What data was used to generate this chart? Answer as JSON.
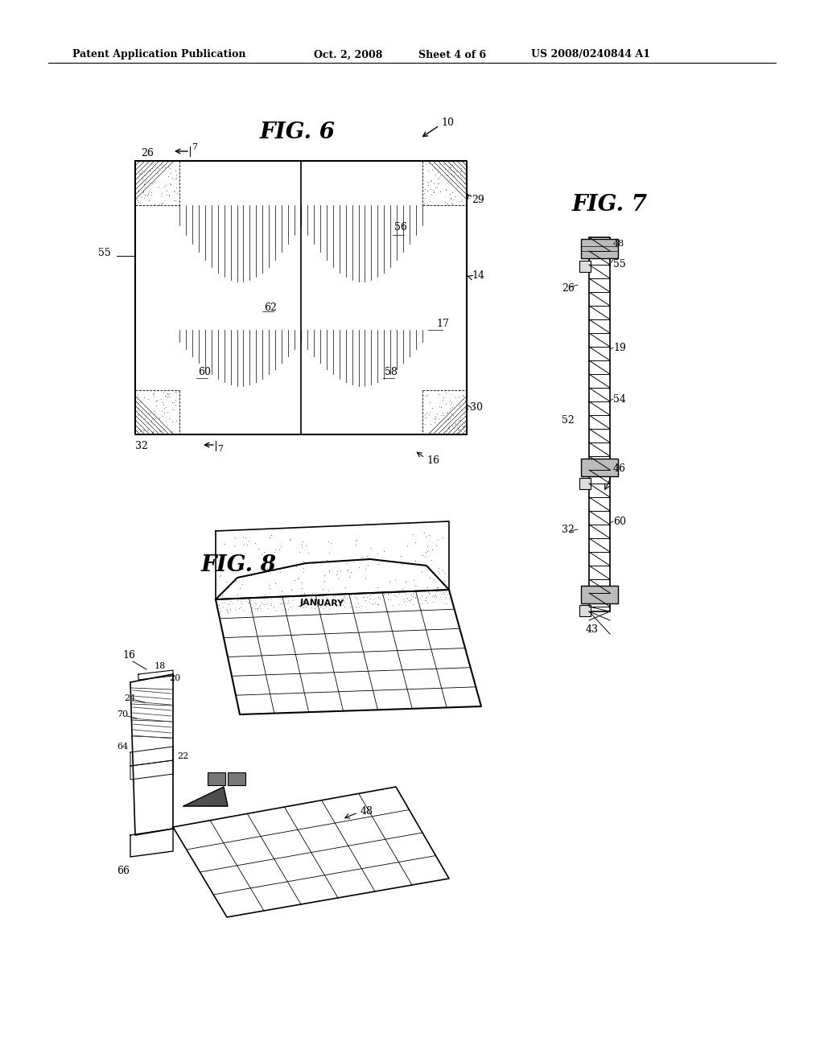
{
  "bg_color": "#ffffff",
  "header_text": "Patent Application Publication",
  "header_date": "Oct. 2, 2008",
  "header_sheet": "Sheet 4 of 6",
  "header_patent": "US 2008/0240844 A1",
  "fig6_title": "FIG. 6",
  "fig7_title": "FIG. 7",
  "fig8_title": "FIG. 8"
}
